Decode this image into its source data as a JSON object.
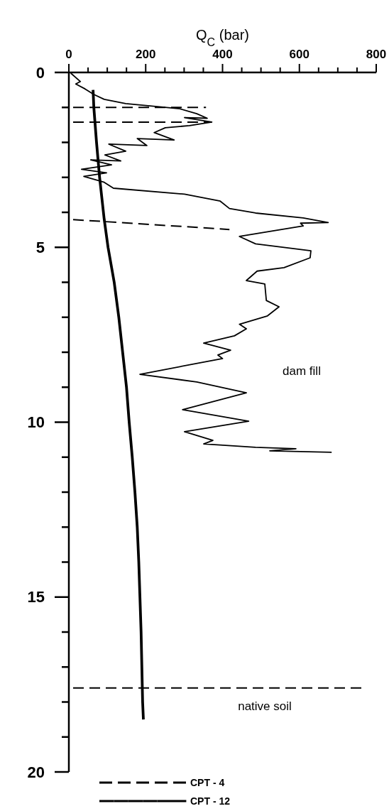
{
  "chart_data": {
    "type": "line",
    "xlabel": "Q$_{C}$ (bar)",
    "xlim": [
      0,
      800
    ],
    "xticks": [
      0,
      {
        "value": 50,
        "label": null
      },
      {
        "value": 100,
        "label": null
      },
      {
        "value": 150,
        "label": null
      },
      200,
      {
        "value": 250,
        "label": null
      },
      {
        "value": 300,
        "label": null
      },
      {
        "value": 350,
        "label": null
      },
      400,
      {
        "value": 450,
        "label": null
      },
      {
        "value": 500,
        "label": null
      },
      {
        "value": 550,
        "label": null
      },
      600,
      {
        "value": 650,
        "label": null
      },
      {
        "value": 700,
        "label": null
      },
      {
        "value": 750,
        "label": null
      },
      800
    ],
    "ylim": [
      20,
      0
    ],
    "yticks": [
      0,
      {
        "value": 1,
        "label": null
      },
      {
        "value": 2,
        "label": null
      },
      {
        "value": 3,
        "label": null
      },
      {
        "value": 4,
        "label": null
      },
      5,
      {
        "value": 6,
        "label": null
      },
      {
        "value": 7,
        "label": null
      },
      {
        "value": 8,
        "label": null
      },
      {
        "value": 9,
        "label": null
      },
      10,
      {
        "value": 11,
        "label": null
      },
      {
        "value": 12,
        "label": null
      },
      {
        "value": 13,
        "label": null
      },
      {
        "value": 14,
        "label": null
      },
      15,
      {
        "value": 16,
        "label": null
      },
      {
        "value": 17,
        "label": null
      },
      {
        "value": 18,
        "label": null
      },
      {
        "value": 19,
        "label": null
      },
      20
    ],
    "grid": false,
    "legend": "bottom",
    "series": [
      {
        "name": "CPT - 4",
        "color": "#000000",
        "line_style": "dashed",
        "x": [
          0,
          357,
          null,
          0,
          372,
          null,
          0,
          418
        ],
        "values": [
          1.0,
          1.0,
          null,
          1.42,
          1.42,
          null,
          4.2,
          4.49
        ]
      },
      {
        "name": "CPT - 12",
        "color": "#000000",
        "line_style": "solid",
        "x": [
          5,
          30,
          18,
          42,
          65,
          92,
          148,
          289,
          333,
          360,
          301,
          372,
          314,
          251,
          222,
          274,
          178,
          203,
          104,
          148,
          94,
          135,
          57,
          111,
          33,
          98,
          39,
          92,
          116,
          301,
          394,
          418,
          486,
          610,
          675,
          603,
          610,
          444,
          486,
          630,
          628,
          560,
          490,
          462,
          510,
          514,
          547,
          517,
          444,
          462,
          431,
          351,
          421,
          388,
          400,
          185,
          333,
          462,
          296,
          468,
          301,
          375,
          351,
          486,
          591,
          523,
          684
        ],
        "values": [
          0.02,
          0.26,
          0.33,
          0.47,
          0.63,
          0.77,
          0.89,
          1.04,
          1.18,
          1.31,
          1.29,
          1.42,
          1.52,
          1.58,
          1.72,
          1.93,
          1.89,
          2.09,
          2.05,
          2.25,
          2.36,
          2.53,
          2.5,
          2.64,
          2.77,
          2.87,
          2.97,
          3.14,
          3.31,
          3.48,
          3.68,
          3.89,
          4.02,
          4.16,
          4.29,
          4.31,
          4.39,
          4.69,
          4.9,
          5.1,
          5.3,
          5.58,
          5.68,
          5.95,
          6.05,
          6.52,
          6.7,
          6.96,
          7.2,
          7.33,
          7.53,
          7.74,
          7.94,
          8.08,
          8.18,
          8.63,
          8.85,
          9.16,
          9.64,
          9.97,
          10.27,
          10.52,
          10.62,
          10.72,
          10.76,
          10.82,
          10.86
        ]
      },
      {
        "color": "#000000",
        "line_style": "solid",
        "x": [
          63,
          65,
          72,
          80,
          92,
          102,
          118,
          130,
          140,
          150,
          157,
          165,
          172,
          178,
          182,
          185,
          188,
          190,
          192,
          194
        ],
        "values": [
          0.5,
          1,
          2,
          3,
          4.2,
          5,
          6,
          7,
          8,
          9,
          10,
          11,
          12,
          13,
          14,
          15,
          16,
          17,
          18,
          18.5
        ]
      }
    ],
    "ref_lines": [
      {
        "axis": "y",
        "value": 17.6,
        "line_style": "dashed"
      }
    ],
    "annotations": [
      "dam fill",
      "native soil"
    ]
  }
}
